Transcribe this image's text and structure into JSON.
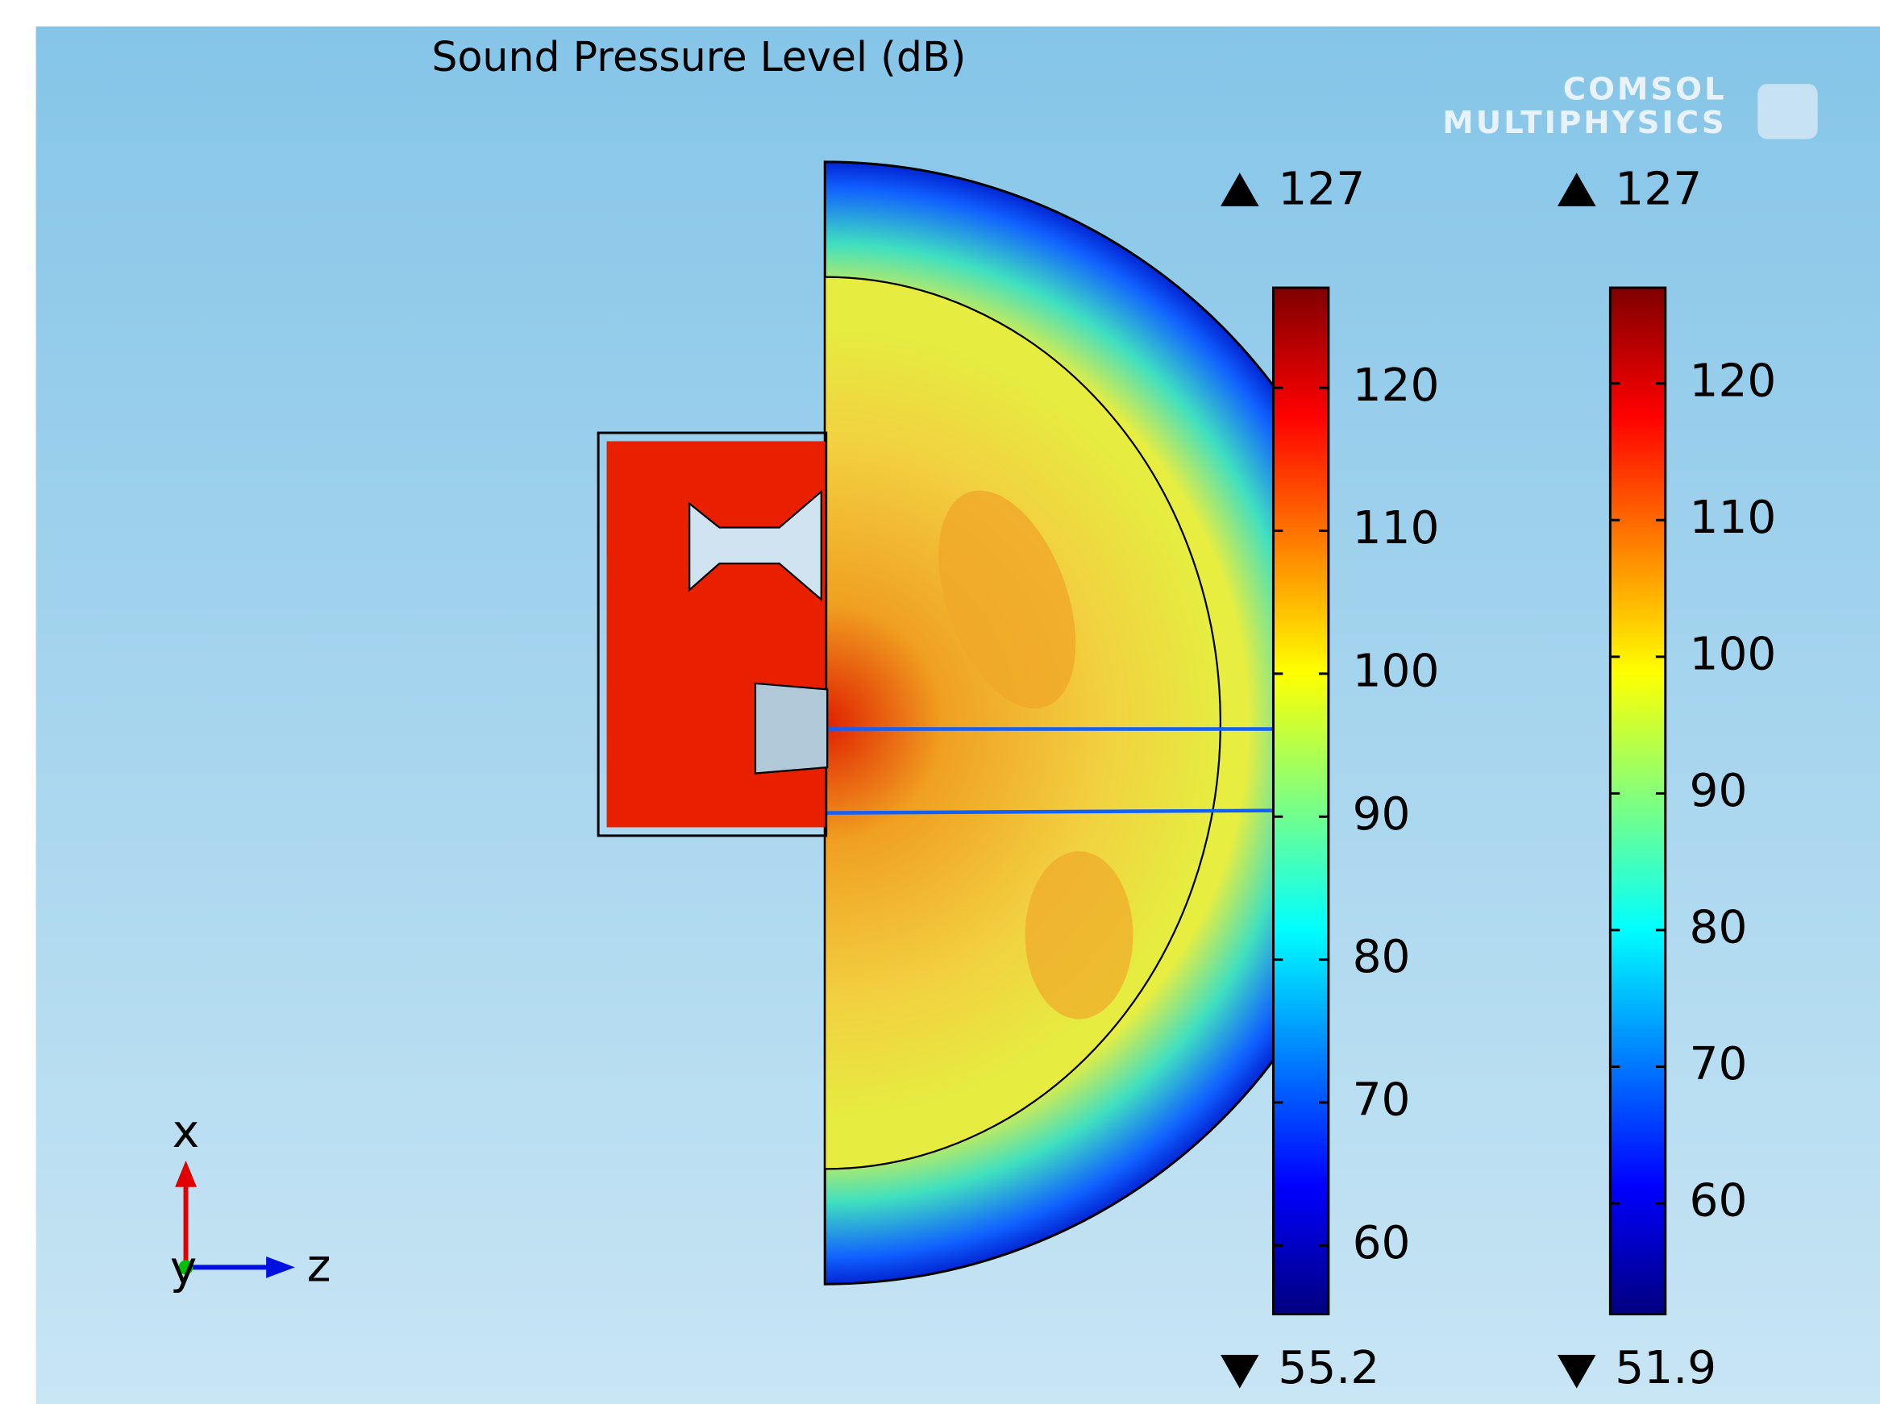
{
  "title": "Sound Pressure Level (dB)",
  "watermark": [
    "COMSOL",
    "MULTIPHYSICS"
  ],
  "colorbars": [
    {
      "max": 127,
      "min": 55.2,
      "ticks": [
        60,
        70,
        80,
        90,
        100,
        110,
        120
      ]
    },
    {
      "max": 127,
      "min": 51.9,
      "ticks": [
        60,
        70,
        80,
        90,
        100,
        110,
        120
      ]
    }
  ],
  "axis_triad": {
    "x": "x",
    "y": "y",
    "z": "z"
  }
}
